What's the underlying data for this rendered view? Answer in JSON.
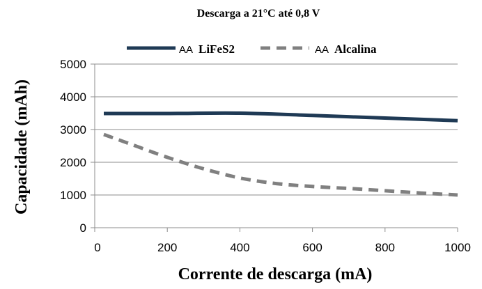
{
  "chart_data": {
    "type": "line",
    "title": "Descarga a 21°C até 0,8 V",
    "xlabel": "Corrente de descarga (mA)",
    "ylabel": "Capacidade (mAh)",
    "xlim": [
      0,
      1000
    ],
    "ylim": [
      0,
      5000
    ],
    "xticks": [
      0,
      200,
      400,
      600,
      800,
      1000
    ],
    "yticks": [
      0,
      1000,
      2000,
      3000,
      4000,
      5000
    ],
    "xtick_labels": [
      "0",
      "200",
      "400",
      "600",
      "800",
      "1000"
    ],
    "ytick_labels": [
      "0",
      "1000",
      "2000",
      "3000",
      "4000",
      "5000"
    ],
    "grid": {
      "horizontal": true,
      "vertical": false
    },
    "legend_position": "top",
    "series": [
      {
        "name_prefix": "AA",
        "name_suffix": "LiFeS2",
        "color": "#1f3a55",
        "style": "solid",
        "points": [
          {
            "x": 25,
            "y": 3490
          },
          {
            "x": 200,
            "y": 3490
          },
          {
            "x": 400,
            "y": 3500
          },
          {
            "x": 600,
            "y": 3430
          },
          {
            "x": 800,
            "y": 3350
          },
          {
            "x": 1000,
            "y": 3270
          }
        ]
      },
      {
        "name_prefix": "AA",
        "name_suffix": "Alcalina",
        "color": "#808080",
        "style": "dashed",
        "points": [
          {
            "x": 25,
            "y": 2850
          },
          {
            "x": 100,
            "y": 2550
          },
          {
            "x": 200,
            "y": 2150
          },
          {
            "x": 300,
            "y": 1800
          },
          {
            "x": 400,
            "y": 1520
          },
          {
            "x": 500,
            "y": 1350
          },
          {
            "x": 600,
            "y": 1260
          },
          {
            "x": 700,
            "y": 1200
          },
          {
            "x": 800,
            "y": 1130
          },
          {
            "x": 900,
            "y": 1060
          },
          {
            "x": 1000,
            "y": 1000
          }
        ]
      }
    ]
  }
}
